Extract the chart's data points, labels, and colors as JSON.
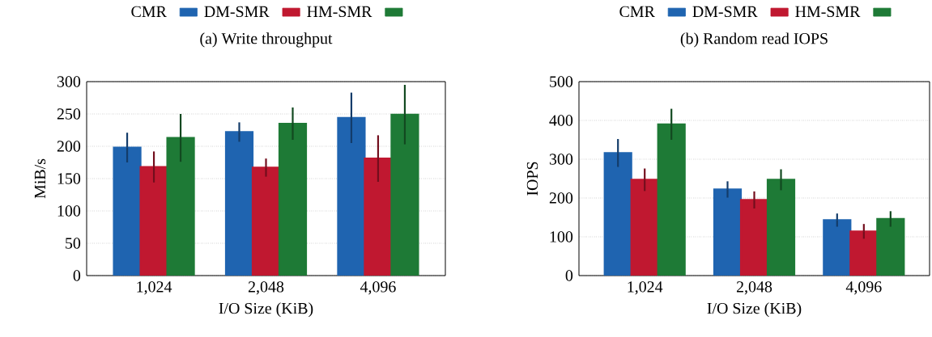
{
  "chart_data": [
    {
      "type": "bar",
      "title": "(a) Write throughput",
      "xlabel": "I/O Size (KiB)",
      "ylabel": "MiB/s",
      "categories": [
        "1,024",
        "2,048",
        "4,096"
      ],
      "series": [
        {
          "name": "CMR",
          "color": "#1f64b0",
          "values": [
            198,
            222,
            244
          ],
          "errors": [
            23,
            15,
            39
          ]
        },
        {
          "name": "DM-SMR",
          "color": "#c01830",
          "values": [
            168,
            167,
            181
          ],
          "errors": [
            24,
            14,
            36
          ]
        },
        {
          "name": "HM-SMR",
          "color": "#1e7a36",
          "values": [
            213,
            235,
            249
          ],
          "errors": [
            37,
            25,
            46
          ]
        }
      ],
      "ylim": [
        0,
        300
      ],
      "yticks": [
        0,
        50,
        100,
        150,
        200,
        250,
        300
      ],
      "grid": "y",
      "legend": "top"
    },
    {
      "type": "bar",
      "title": "(b) Random read IOPS",
      "xlabel": "I/O Size (KiB)",
      "ylabel": "IOPS",
      "categories": [
        "1,024",
        "2,048",
        "4,096"
      ],
      "series": [
        {
          "name": "CMR",
          "color": "#1f64b0",
          "values": [
            316,
            222,
            143
          ],
          "errors": [
            36,
            21,
            17
          ]
        },
        {
          "name": "DM-SMR",
          "color": "#c01830",
          "values": [
            247,
            195,
            114
          ],
          "errors": [
            29,
            22,
            19
          ]
        },
        {
          "name": "HM-SMR",
          "color": "#1e7a36",
          "values": [
            390,
            247,
            146
          ],
          "errors": [
            40,
            27,
            20
          ]
        }
      ],
      "ylim": [
        0,
        500
      ],
      "yticks": [
        0,
        100,
        200,
        300,
        400,
        500
      ],
      "grid": "y",
      "legend": "top"
    }
  ]
}
